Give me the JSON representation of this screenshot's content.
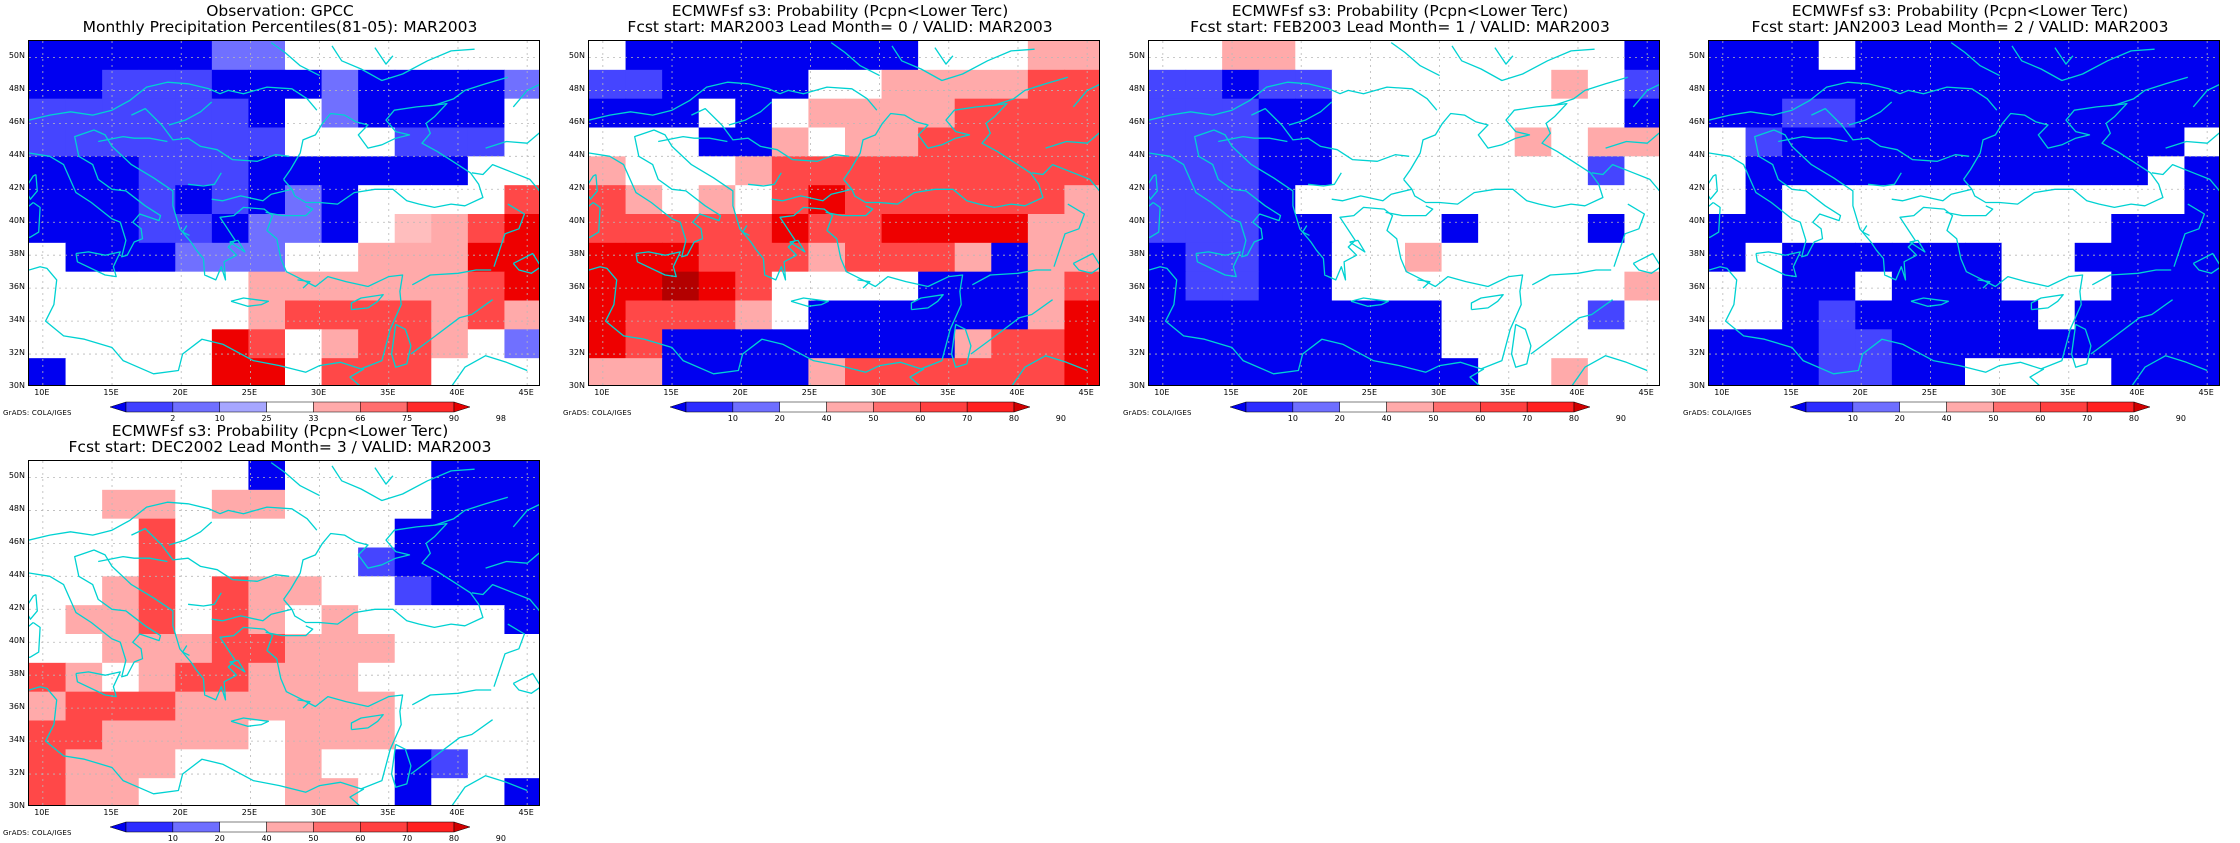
{
  "panels": [
    {
      "title1": "Observation: GPCC",
      "title2": "Monthly Precipitation Percentiles(81-05): MAR2003",
      "grid": [
        "BBBBBNNWWWWWWW",
        "BBDDDBBBNBBBBN",
        "DDDDDDBWNBBBBW",
        "DDDDDDDWWWDDDW",
        "BBBDDDBBBBBBWW",
        "BBBDBDBNBWWWWR",
        "BBBDDBNNBWpPRT",
        "WBBBNNNWWPPPTT",
        "WWWWWWPPPPPPRT",
        "WWWWWWPRRRRPRP",
        "WWWWWTRWPRRPWN",
        "BWWWWTTWRRRWWW"
      ],
      "colorbar": {
        "labels": [
          "2",
          "10",
          "25",
          "33",
          "66",
          "75",
          "90",
          "98"
        ],
        "colors": [
          "#0000f0",
          "#4040ff",
          "#6f6fff",
          "#a6a6ff",
          "#ffffff",
          "#ffaaaa",
          "#ff6e6e",
          "#ff2a2a",
          "#e60000"
        ]
      }
    },
    {
      "title1": "ECMWFsf s3: Probability (Pcpn<Lower Terc)",
      "title2": "Fcst start: MAR2003   Lead Month= 0 / VALID: MAR2003",
      "grid": [
        "WBBBBBBBBWWWPP",
        "DDBBBBWWPPPPRR",
        "BBBWBWPPPPRRRR",
        "WWWBBPWPPRRRRR",
        "PWWWPRRRRRRRRR",
        "RPWPWRTRRRRRRP",
        "RRRRRTRRTTTTPP",
        "TTTRRRPRRRPBPP",
        "TTSTRWWWWBBBPR",
        "TRRRPWBBBBBBPT",
        "TRBBBBBBBBPRRT",
        "PPBBBBPRRRRRRT"
      ],
      "colorbar": {
        "labels": [
          "10",
          "20",
          "40",
          "50",
          "60",
          "70",
          "80",
          "90"
        ],
        "colors": [
          "#0000f0",
          "#2c2cff",
          "#6f6fff",
          "#ffffff",
          "#ffaaaa",
          "#ff6e6e",
          "#ff4040",
          "#ff2020",
          "#d00000"
        ]
      }
    },
    {
      "title1": "ECMWFsf s3: Probability (Pcpn<Lower Terc)",
      "title2": "Fcst start: FEB2003   Lead Month= 1 / VALID: MAR2003",
      "grid": [
        "WWPPWWWWWWWWWB",
        "DDBDDWWWWWWPWD",
        "DDDBBWWWWWWWWB",
        "DDDBBWWWWWPWPP",
        "DDDBBWWWWWWWDW",
        "DDDBWWWWWWWWWW",
        "DDDBBWWWBWWWBW",
        "BDDBBWWPWWWWWW",
        "BDDBBWWWWWWWWP",
        "BBBBBBBBWWWWDW",
        "BBBBBBBBWWWWWW",
        "BBBBBBBBBWWPWW"
      ],
      "colorbar": {
        "labels": [
          "10",
          "20",
          "40",
          "50",
          "60",
          "70",
          "80",
          "90"
        ],
        "colors": [
          "#0000f0",
          "#2c2cff",
          "#6f6fff",
          "#ffffff",
          "#ffaaaa",
          "#ff6e6e",
          "#ff4040",
          "#ff2020",
          "#d00000"
        ]
      }
    },
    {
      "title1": "ECMWFsf s3: Probability (Pcpn<Lower Terc)",
      "title2": "Fcst start: JAN2003   Lead Month= 2 / VALID: MAR2003",
      "grid": [
        "BBBWBBBBBBBBBB",
        "BBBBBBBBBBBBBB",
        "BBDDBBBBBBBBBB",
        "WDBBBBBBBBBBBW",
        "WBBBBBBBBBBBWB",
        "WBWWWWWWWWWWWB",
        "BBWWWWWWWWWBBB",
        "BWBBBBBBWWBBBB",
        "WWBBWBBBWWWBBB",
        "WWBDBBBBBWBBBB",
        "BBBDDBBBBBBBBB",
        "BBBDDBBWWWWBBB"
      ],
      "colorbar": {
        "labels": [
          "10",
          "20",
          "40",
          "50",
          "60",
          "70",
          "80",
          "90"
        ],
        "colors": [
          "#0000f0",
          "#2c2cff",
          "#6f6fff",
          "#ffffff",
          "#ffaaaa",
          "#ff6e6e",
          "#ff4040",
          "#ff2020",
          "#d00000"
        ]
      }
    },
    {
      "title1": "ECMWFsf s3: Probability (Pcpn<Lower Terc)",
      "title2": "Fcst start: DEC2002   Lead Month= 3 / VALID: MAR2003",
      "grid": [
        "WWWWWWBWWWWBBB",
        "WWPPWPPWWWWBBB",
        "WWWRWWWWWWBBBB",
        "WWWRWWWWWDBBBB",
        "WWPRWRPPWWDBBB",
        "WPPRWRPWPWWWWB",
        "WWPPPRRPPPWWWW",
        "RPWPRRPPPWWWWW",
        "PRRRPPPPPPWWWW",
        "RRPPPPWPPPWWWW",
        "RPPPWWWPWWBDWW",
        "RPPWWWWPPWBWWB"
      ],
      "colorbar": {
        "labels": [
          "10",
          "20",
          "40",
          "50",
          "60",
          "70",
          "80",
          "90"
        ],
        "colors": [
          "#0000f0",
          "#2c2cff",
          "#6f6fff",
          "#ffffff",
          "#ffaaaa",
          "#ff6e6e",
          "#ff4040",
          "#ff2020",
          "#d00000"
        ]
      }
    }
  ],
  "axes": {
    "ylabels": [
      "50N",
      "48N",
      "46N",
      "44N",
      "42N",
      "40N",
      "38N",
      "36N",
      "34N",
      "32N",
      "30N"
    ],
    "xlabels": [
      "10E",
      "15E",
      "20E",
      "25E",
      "30E",
      "35E",
      "40E",
      "45E"
    ]
  },
  "credit": "GrADS: COLA/IGES",
  "colors": {
    "B": "#0000f0",
    "D": "#4545ff",
    "N": "#7070ff",
    "L": "#a8a8ff",
    "W": "#ffffff",
    "P": "#ffaaaa",
    "R": "#ff4848",
    "T": "#ee0000",
    "S": "#b30000",
    "p": "#ffbebe",
    "coast": "#00d2d2",
    "grid": "#b8b8b8"
  }
}
